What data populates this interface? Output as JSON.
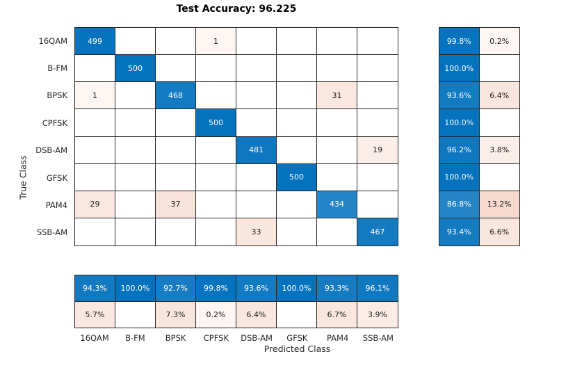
{
  "chart_data": {
    "type": "heatmap",
    "subtype": "confusion-matrix",
    "title": "Test Accuracy: 96.225",
    "xlabel": "Predicted Class",
    "ylabel": "True Class",
    "classes": [
      "16QAM",
      "B-FM",
      "BPSK",
      "CPFSK",
      "DSB-AM",
      "GFSK",
      "PAM4",
      "SSB-AM"
    ],
    "counts": [
      [
        499,
        null,
        null,
        1,
        null,
        null,
        null,
        null
      ],
      [
        null,
        500,
        null,
        null,
        null,
        null,
        null,
        null
      ],
      [
        1,
        null,
        468,
        null,
        null,
        null,
        31,
        null
      ],
      [
        null,
        null,
        null,
        500,
        null,
        null,
        null,
        null
      ],
      [
        null,
        null,
        null,
        null,
        481,
        null,
        null,
        19
      ],
      [
        null,
        null,
        null,
        null,
        null,
        500,
        null,
        null
      ],
      [
        29,
        null,
        37,
        null,
        null,
        null,
        434,
        null
      ],
      [
        null,
        null,
        null,
        null,
        33,
        null,
        null,
        467
      ]
    ],
    "row_summary_pct": {
      "correct": [
        99.8,
        100.0,
        93.6,
        100.0,
        96.2,
        100.0,
        86.8,
        93.4
      ],
      "incorrect": [
        0.2,
        null,
        6.4,
        null,
        3.8,
        null,
        13.2,
        6.6
      ]
    },
    "col_summary_pct": {
      "correct": [
        94.3,
        100.0,
        92.7,
        99.8,
        93.6,
        100.0,
        93.3,
        96.1
      ],
      "incorrect": [
        5.7,
        null,
        7.3,
        0.2,
        6.4,
        null,
        6.7,
        3.9
      ]
    },
    "colors": {
      "diagonal_base": "#0572BD",
      "offdiagonal_base": "#D95319",
      "gridline": "#262626",
      "label_text": "#262626",
      "cell_text_on_blue": "#FFFFFF",
      "cell_text_on_light": "#1A1A1A"
    },
    "legend": "none",
    "layout": {
      "row_summary_position": "right",
      "column_summary_position": "bottom"
    }
  },
  "grids": {
    "main": [
      [
        {
          "t": "499",
          "bg": "#0673BE",
          "fg": "#FFFFFF"
        },
        {
          "t": "",
          "bg": "#FFFFFF"
        },
        {
          "t": "",
          "bg": "#FFFFFF"
        },
        {
          "t": "1",
          "bg": "#FDF6F3",
          "fg": "#1A1A1A"
        },
        {
          "t": "",
          "bg": "#FFFFFF"
        },
        {
          "t": "",
          "bg": "#FFFFFF"
        },
        {
          "t": "",
          "bg": "#FFFFFF"
        },
        {
          "t": "",
          "bg": "#FFFFFF"
        }
      ],
      [
        {
          "t": "",
          "bg": "#FFFFFF"
        },
        {
          "t": "500",
          "bg": "#0572BD",
          "fg": "#FFFFFF"
        },
        {
          "t": "",
          "bg": "#FFFFFF"
        },
        {
          "t": "",
          "bg": "#FFFFFF"
        },
        {
          "t": "",
          "bg": "#FFFFFF"
        },
        {
          "t": "",
          "bg": "#FFFFFF"
        },
        {
          "t": "",
          "bg": "#FFFFFF"
        },
        {
          "t": "",
          "bg": "#FFFFFF"
        }
      ],
      [
        {
          "t": "1",
          "bg": "#FDF6F3",
          "fg": "#1A1A1A"
        },
        {
          "t": "",
          "bg": "#FFFFFF"
        },
        {
          "t": "468",
          "bg": "#137BC1",
          "fg": "#FFFFFF"
        },
        {
          "t": "",
          "bg": "#FFFFFF"
        },
        {
          "t": "",
          "bg": "#FFFFFF"
        },
        {
          "t": "",
          "bg": "#FFFFFF"
        },
        {
          "t": "31",
          "bg": "#FAE7DF",
          "fg": "#1A1A1A"
        },
        {
          "t": "",
          "bg": "#FFFFFF"
        }
      ],
      [
        {
          "t": "",
          "bg": "#FFFFFF"
        },
        {
          "t": "",
          "bg": "#FFFFFF"
        },
        {
          "t": "",
          "bg": "#FFFFFF"
        },
        {
          "t": "500",
          "bg": "#0572BD",
          "fg": "#FFFFFF"
        },
        {
          "t": "",
          "bg": "#FFFFFF"
        },
        {
          "t": "",
          "bg": "#FFFFFF"
        },
        {
          "t": "",
          "bg": "#FFFFFF"
        },
        {
          "t": "",
          "bg": "#FFFFFF"
        }
      ],
      [
        {
          "t": "",
          "bg": "#FFFFFF"
        },
        {
          "t": "",
          "bg": "#FFFFFF"
        },
        {
          "t": "",
          "bg": "#FFFFFF"
        },
        {
          "t": "",
          "bg": "#FFFFFF"
        },
        {
          "t": "481",
          "bg": "#0F77BF",
          "fg": "#FFFFFF"
        },
        {
          "t": "",
          "bg": "#FFFFFF"
        },
        {
          "t": "",
          "bg": "#FFFFFF"
        },
        {
          "t": "19",
          "bg": "#FBEDE7",
          "fg": "#1A1A1A"
        }
      ],
      [
        {
          "t": "",
          "bg": "#FFFFFF"
        },
        {
          "t": "",
          "bg": "#FFFFFF"
        },
        {
          "t": "",
          "bg": "#FFFFFF"
        },
        {
          "t": "",
          "bg": "#FFFFFF"
        },
        {
          "t": "",
          "bg": "#FFFFFF"
        },
        {
          "t": "500",
          "bg": "#0572BD",
          "fg": "#FFFFFF"
        },
        {
          "t": "",
          "bg": "#FFFFFF"
        },
        {
          "t": "",
          "bg": "#FFFFFF"
        }
      ],
      [
        {
          "t": "29",
          "bg": "#FAE8E0",
          "fg": "#1A1A1A"
        },
        {
          "t": "",
          "bg": "#FFFFFF"
        },
        {
          "t": "37",
          "bg": "#F9E4DB",
          "fg": "#1A1A1A"
        },
        {
          "t": "",
          "bg": "#FFFFFF"
        },
        {
          "t": "",
          "bg": "#FFFFFF"
        },
        {
          "t": "",
          "bg": "#FFFFFF"
        },
        {
          "t": "434",
          "bg": "#2685C6",
          "fg": "#FFFFFF"
        },
        {
          "t": "",
          "bg": "#FFFFFF"
        }
      ],
      [
        {
          "t": "",
          "bg": "#FFFFFF"
        },
        {
          "t": "",
          "bg": "#FFFFFF"
        },
        {
          "t": "",
          "bg": "#FFFFFF"
        },
        {
          "t": "",
          "bg": "#FFFFFF"
        },
        {
          "t": "33",
          "bg": "#F9E6DD",
          "fg": "#1A1A1A"
        },
        {
          "t": "",
          "bg": "#FFFFFF"
        },
        {
          "t": "",
          "bg": "#FFFFFF"
        },
        {
          "t": "467",
          "bg": "#147BC1",
          "fg": "#FFFFFF"
        }
      ]
    ],
    "rowsum": [
      [
        {
          "t": "99.8%",
          "bg": "#0673BE",
          "fg": "#FFFFFF"
        },
        {
          "t": "0.2%",
          "bg": "#FDF6F3",
          "fg": "#1A1A1A"
        }
      ],
      [
        {
          "t": "100.0%",
          "bg": "#0572BD",
          "fg": "#FFFFFF"
        },
        {
          "t": "",
          "bg": "#FFFFFF"
        }
      ],
      [
        {
          "t": "93.6%",
          "bg": "#137BC1",
          "fg": "#FFFFFF"
        },
        {
          "t": "6.4%",
          "bg": "#F9E6DE",
          "fg": "#1A1A1A"
        }
      ],
      [
        {
          "t": "100.0%",
          "bg": "#0572BD",
          "fg": "#FFFFFF"
        },
        {
          "t": "",
          "bg": "#FFFFFF"
        }
      ],
      [
        {
          "t": "96.2%",
          "bg": "#0F77BF",
          "fg": "#FFFFFF"
        },
        {
          "t": "3.8%",
          "bg": "#FBEDE7",
          "fg": "#1A1A1A"
        }
      ],
      [
        {
          "t": "100.0%",
          "bg": "#0572BD",
          "fg": "#FFFFFF"
        },
        {
          "t": "",
          "bg": "#FFFFFF"
        }
      ],
      [
        {
          "t": "86.8%",
          "bg": "#2685C6",
          "fg": "#FFFFFF"
        },
        {
          "t": "13.2%",
          "bg": "#F7DACE",
          "fg": "#1A1A1A"
        }
      ],
      [
        {
          "t": "93.4%",
          "bg": "#147BC1",
          "fg": "#FFFFFF"
        },
        {
          "t": "6.6%",
          "bg": "#F9E6DD",
          "fg": "#1A1A1A"
        }
      ]
    ],
    "colsum": [
      [
        {
          "t": "94.3%",
          "bg": "#137AC1",
          "fg": "#FFFFFF"
        },
        {
          "t": "100.0%",
          "bg": "#0572BD",
          "fg": "#FFFFFF"
        },
        {
          "t": "92.7%",
          "bg": "#177CC2",
          "fg": "#FFFFFF"
        },
        {
          "t": "99.8%",
          "bg": "#0673BE",
          "fg": "#FFFFFF"
        },
        {
          "t": "93.6%",
          "bg": "#137BC1",
          "fg": "#FFFFFF"
        },
        {
          "t": "100.0%",
          "bg": "#0572BD",
          "fg": "#FFFFFF"
        },
        {
          "t": "93.3%",
          "bg": "#167BC1",
          "fg": "#FFFFFF"
        },
        {
          "t": "96.1%",
          "bg": "#0F78BF",
          "fg": "#FFFFFF"
        }
      ],
      [
        {
          "t": "5.7%",
          "bg": "#FAE8E0",
          "fg": "#1A1A1A"
        },
        {
          "t": "",
          "bg": "#FFFFFF"
        },
        {
          "t": "7.3%",
          "bg": "#F9E5DB",
          "fg": "#1A1A1A"
        },
        {
          "t": "0.2%",
          "bg": "#FDF6F3",
          "fg": "#1A1A1A"
        },
        {
          "t": "6.4%",
          "bg": "#F9E6DE",
          "fg": "#1A1A1A"
        },
        {
          "t": "",
          "bg": "#FFFFFF"
        },
        {
          "t": "6.7%",
          "bg": "#F9E6DC",
          "fg": "#1A1A1A"
        },
        {
          "t": "3.9%",
          "bg": "#FBEDE6",
          "fg": "#1A1A1A"
        }
      ]
    ]
  }
}
